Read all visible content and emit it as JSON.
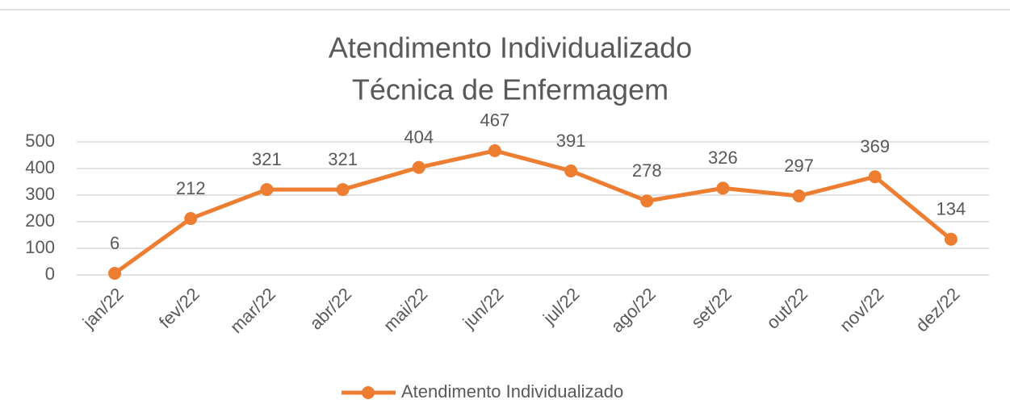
{
  "chart_data": {
    "type": "line",
    "title": "Atendimento Individualizado",
    "subtitle": "Técnica de Enfermagem",
    "categories": [
      "jan/22",
      "fev/22",
      "mar/22",
      "abr/22",
      "mai/22",
      "jun/22",
      "jul/22",
      "ago/22",
      "set/22",
      "out/22",
      "nov/22",
      "dez/22"
    ],
    "series": [
      {
        "name": "Atendimento Individualizado",
        "color": "#ed7d31",
        "values": [
          6,
          212,
          321,
          321,
          404,
          467,
          391,
          278,
          326,
          297,
          369,
          134
        ]
      }
    ],
    "ylim": [
      0,
      500
    ],
    "yticks": [
      0,
      100,
      200,
      300,
      400,
      500
    ],
    "grid": true,
    "legend": "bottom"
  }
}
